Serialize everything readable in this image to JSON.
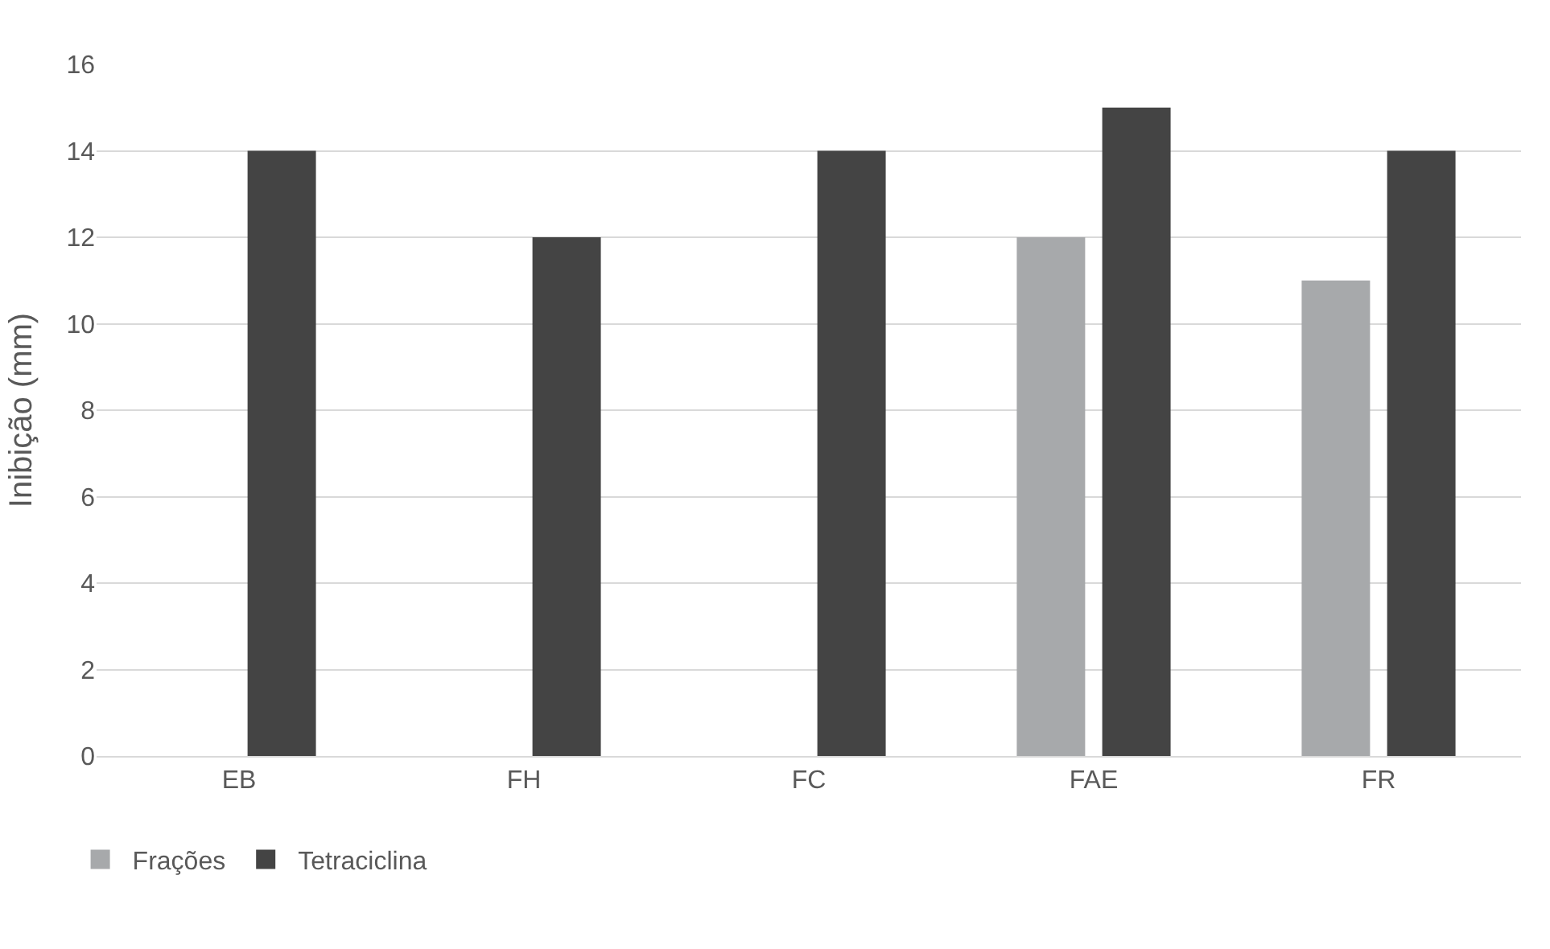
{
  "chart_data": {
    "type": "bar",
    "ylabel": "Inibição (mm)",
    "categories": [
      "EB",
      "FH",
      "FC",
      "FAE",
      "FR"
    ],
    "series": [
      {
        "name": "Frações",
        "color": "#a7a9ab",
        "values": [
          0,
          0,
          0,
          12,
          11
        ]
      },
      {
        "name": "Tetraciclina",
        "color": "#444444",
        "values": [
          14,
          12,
          14,
          15,
          14
        ]
      }
    ],
    "ylim": [
      0,
      16
    ],
    "yticks": [
      0,
      2,
      4,
      6,
      8,
      10,
      12,
      14,
      16
    ],
    "grid": "y",
    "legend": "bottom left"
  }
}
